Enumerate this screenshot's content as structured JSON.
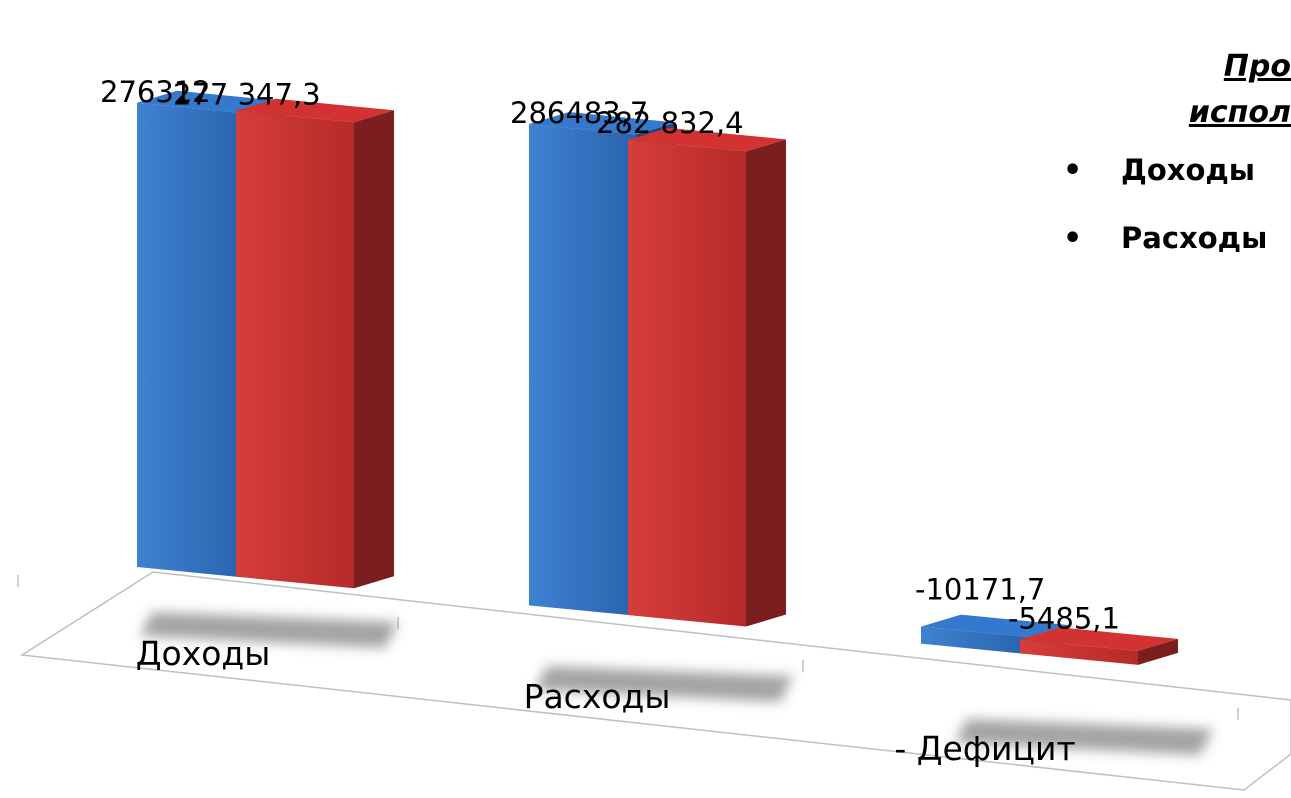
{
  "chart_data": {
    "type": "bar",
    "categories": [
      "Доходы",
      "Расходы",
      "- Дефицит"
    ],
    "series": [
      {
        "values": [
          276312,
          286483.7,
          -10171.7
        ],
        "labels": [
          "276312",
          "286483,7",
          "-10171,7"
        ],
        "color": "#3273c4"
      },
      {
        "values": [
          277347.3,
          282832.4,
          -5485.1
        ],
        "labels": [
          "277 347,3",
          "282 832,4",
          "-5485,1"
        ],
        "color": "#c8302f"
      }
    ],
    "title": "",
    "xlabel": "",
    "ylabel": "",
    "grid": false,
    "legend_position": "right"
  },
  "title_lines": [
    "Про",
    "испол"
  ],
  "legend_items": [
    "Доходы",
    "Расходы"
  ]
}
